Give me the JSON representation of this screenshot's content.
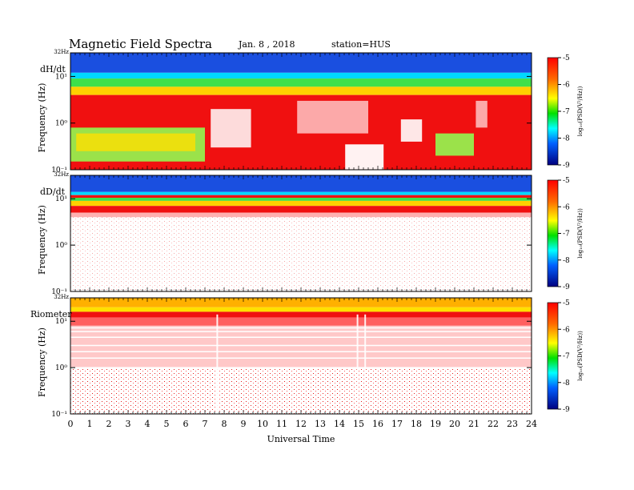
{
  "header": {
    "title": "Magnetic  Field  Spectra",
    "date": "Jan.  8  , 2018",
    "station": "station=HUS"
  },
  "chart_data": [
    {
      "type": "heatmap",
      "panel_label": "dH/dt",
      "ylabel": "Frequency  (Hz)",
      "xlabel": "",
      "top_freq_label": "32Hz",
      "y_ticks": [
        {
          "value": 10,
          "label": "10¹"
        },
        {
          "value": 1,
          "label": "10⁰"
        },
        {
          "value": 0.1,
          "label": "10⁻¹"
        }
      ],
      "ylim": [
        0.1,
        32
      ],
      "yscale": "log",
      "xlim": [
        0,
        24
      ],
      "colorbar": {
        "label": "log₁₀(PSD(V²/Hz))",
        "range": [
          -9,
          -5
        ],
        "ticks": [
          -5,
          -6,
          -7,
          -8,
          -9
        ]
      },
      "description": "Blue above ~10 Hz, green/yellow band near 6-10 Hz, red broadband below ~4 Hz with green/yellow patch 0-7 UT and 19-21 UT at low frequency, white gaps near 7-9, 12-16, 17-18 UT"
    },
    {
      "type": "heatmap",
      "panel_label": "dD/dt",
      "ylabel": "Frequency  (Hz)",
      "xlabel": "",
      "top_freq_label": "32Hz",
      "y_ticks": [
        {
          "value": 10,
          "label": "10¹"
        },
        {
          "value": 1,
          "label": "10⁰"
        },
        {
          "value": 0.1,
          "label": "10⁻¹"
        }
      ],
      "ylim": [
        0.1,
        32
      ],
      "yscale": "log",
      "xlim": [
        0,
        24
      ],
      "colorbar": {
        "label": "log₁₀(PSD(V²/Hz))",
        "range": [
          -9,
          -5
        ],
        "ticks": [
          -5,
          -6,
          -7,
          -8,
          -9
        ]
      },
      "description": "Blue above ~12 Hz, narrow red/green bands near 8-12 Hz, red down to ~5 Hz, mostly white below with sparse red speckle"
    },
    {
      "type": "heatmap",
      "panel_label": "Riometer",
      "ylabel": "Frequency  (Hz)",
      "xlabel": "Universal Time",
      "top_freq_label": "32Hz",
      "y_ticks": [
        {
          "value": 10,
          "label": "10¹"
        },
        {
          "value": 1,
          "label": "10⁰"
        },
        {
          "value": 0.1,
          "label": "10⁻¹"
        }
      ],
      "ylim": [
        0.1,
        32
      ],
      "yscale": "log",
      "xlim": [
        0,
        24
      ],
      "x_ticks": [
        "0",
        "1",
        "2",
        "3",
        "4",
        "5",
        "6",
        "7",
        "8",
        "9",
        "10",
        "11",
        "12",
        "13",
        "14",
        "15",
        "16",
        "17",
        "18",
        "19",
        "20",
        "21",
        "22",
        "23",
        "24"
      ],
      "colorbar": {
        "label": "log₁₀(PSD(V²/Hz))",
        "range": [
          -9,
          -5
        ],
        "ticks": [
          -5,
          -6,
          -7,
          -8,
          -9
        ]
      },
      "description": "Orange/yellow band near top (~15-32 Hz), red below ~15 Hz fading to pink speckle, with horizontal white lines and white vertical gaps near 7.5 and 15 UT"
    }
  ]
}
